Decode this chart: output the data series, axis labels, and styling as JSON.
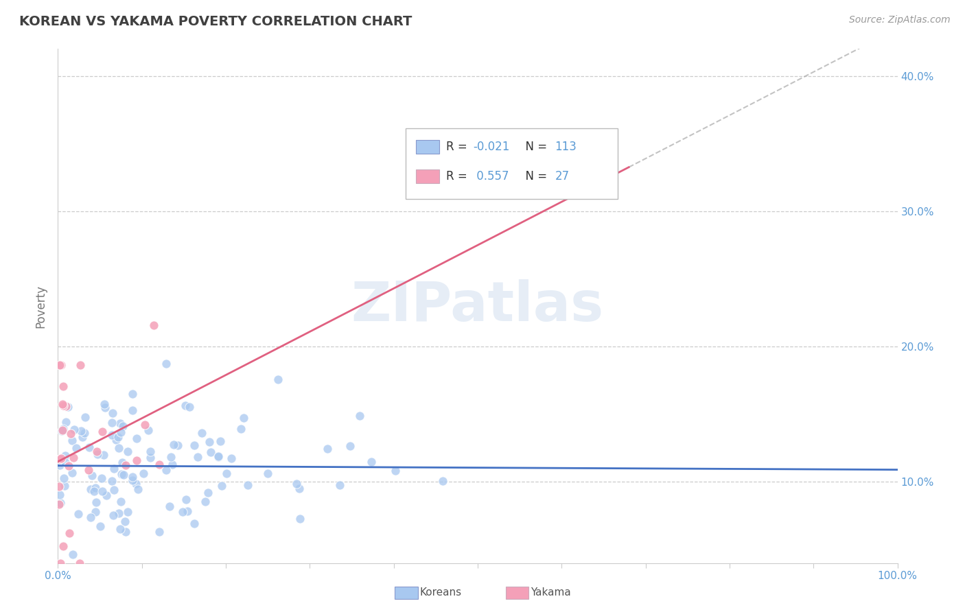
{
  "title": "KOREAN VS YAKAMA POVERTY CORRELATION CHART",
  "source": "Source: ZipAtlas.com",
  "ylabel": "Poverty",
  "xlim": [
    0,
    1.0
  ],
  "ylim": [
    0.04,
    0.42
  ],
  "yticks": [
    0.1,
    0.2,
    0.3,
    0.4
  ],
  "korean_color": "#a8c8f0",
  "yakama_color": "#f4a0b8",
  "korean_line_color": "#4472c4",
  "yakama_line_color": "#e06080",
  "korean_R": -0.021,
  "korean_N": 113,
  "yakama_R": 0.557,
  "yakama_N": 27,
  "watermark": "ZIPatlas",
  "background_color": "#ffffff",
  "grid_color": "#cccccc",
  "title_color": "#404040",
  "axis_label_color": "#5b9bd5",
  "korean_trend_intercept": 0.112,
  "korean_trend_slope": -0.003,
  "yakama_trend_intercept": 0.115,
  "yakama_trend_slope": 0.32
}
